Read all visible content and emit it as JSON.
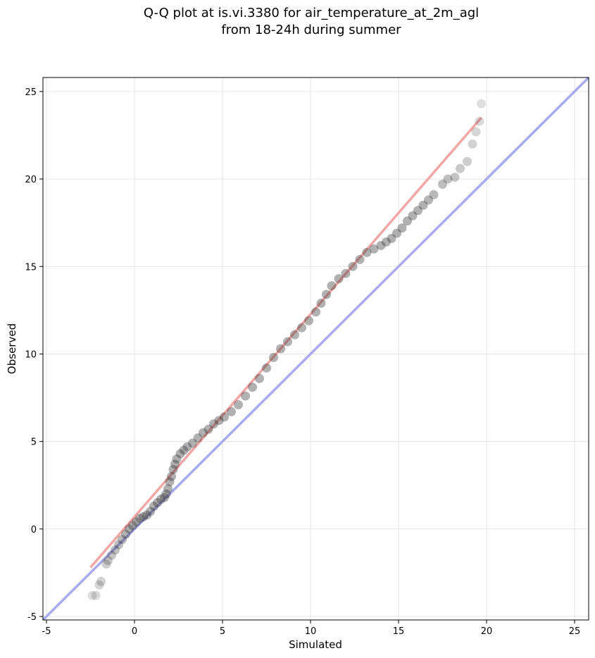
{
  "chart_data": {
    "type": "scatter",
    "title_lines": [
      "Q-Q plot at is.vi.3380 for air_temperature_at_2m_agl",
      "from 18-24h during summer"
    ],
    "xlabel": "Simulated",
    "ylabel": "Observed",
    "xlim": [
      -5.2,
      25.8
    ],
    "ylim": [
      -5.2,
      25.8
    ],
    "xticks": [
      -5,
      0,
      5,
      10,
      15,
      20,
      25
    ],
    "yticks": [
      -5,
      0,
      5,
      10,
      15,
      20,
      25
    ],
    "grid": true,
    "reference_lines": [
      {
        "kind": "identity",
        "color": "#aaaaf2",
        "x": [
          -5.2,
          25.8
        ],
        "y": [
          -5.2,
          25.8
        ]
      },
      {
        "kind": "fit",
        "color": "#f3a6a6",
        "x": [
          -2.5,
          19.7
        ],
        "y": [
          -2.2,
          23.5
        ]
      }
    ],
    "quantiles": {
      "x": [
        -2.4,
        -2.2,
        -2.0,
        -1.9,
        -1.6,
        -1.5,
        -1.3,
        -1.1,
        -0.9,
        -0.7,
        -0.5,
        -0.3,
        -0.1,
        0.1,
        0.3,
        0.5,
        0.7,
        0.9,
        1.1,
        1.3,
        1.5,
        1.7,
        1.8,
        1.9,
        2.0,
        2.1,
        2.2,
        2.3,
        2.4,
        2.6,
        2.8,
        3.0,
        3.3,
        3.6,
        3.9,
        4.2,
        4.5,
        4.8,
        5.1,
        5.5,
        5.9,
        6.3,
        6.7,
        7.1,
        7.5,
        7.9,
        8.3,
        8.7,
        9.1,
        9.5,
        9.9,
        10.3,
        10.6,
        10.9,
        11.2,
        11.6,
        12.0,
        12.4,
        12.8,
        13.2,
        13.6,
        14.0,
        14.3,
        14.6,
        14.9,
        15.2,
        15.5,
        15.8,
        16.1,
        16.4,
        16.7,
        17.0,
        17.5,
        17.8,
        18.2,
        18.5,
        18.9,
        19.2,
        19.4,
        19.6,
        19.7
      ],
      "y": [
        -3.8,
        -3.8,
        -3.2,
        -3.0,
        -2.0,
        -1.8,
        -1.5,
        -1.2,
        -0.9,
        -0.6,
        -0.3,
        0.0,
        0.2,
        0.4,
        0.6,
        0.7,
        0.8,
        1.0,
        1.3,
        1.5,
        1.7,
        1.8,
        2.0,
        2.3,
        2.7,
        3.0,
        3.4,
        3.7,
        4.0,
        4.3,
        4.5,
        4.7,
        4.9,
        5.2,
        5.5,
        5.7,
        6.0,
        6.2,
        6.4,
        6.7,
        7.1,
        7.6,
        8.1,
        8.6,
        9.2,
        9.8,
        10.3,
        10.7,
        11.1,
        11.5,
        11.9,
        12.4,
        12.9,
        13.4,
        13.9,
        14.3,
        14.6,
        15.0,
        15.4,
        15.8,
        16.0,
        16.2,
        16.4,
        16.6,
        16.9,
        17.2,
        17.6,
        17.9,
        18.2,
        18.5,
        18.8,
        19.1,
        19.7,
        20.0,
        20.1,
        20.6,
        21.0,
        22.0,
        22.7,
        23.3,
        24.3
      ]
    }
  }
}
